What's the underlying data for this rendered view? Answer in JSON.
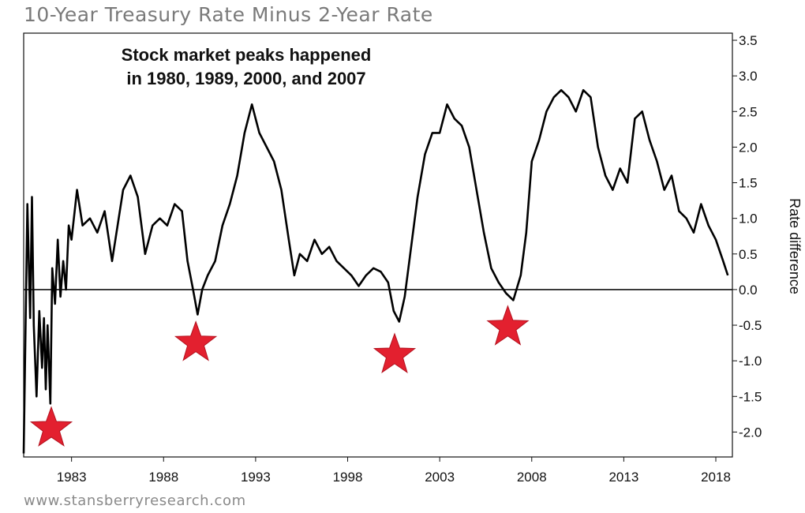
{
  "chart_data": {
    "type": "line",
    "title": "10-Year Treasury Rate Minus 2-Year Rate",
    "annotation": [
      "Stock market peaks happened",
      "in 1980, 1989, 2000, and 2007"
    ],
    "xlabel": "",
    "ylabel": "Rate difference",
    "xlim": [
      1980.4,
      2018.9
    ],
    "ylim": [
      -2.35,
      3.6
    ],
    "x_ticks": [
      "1983",
      "1988",
      "1993",
      "1998",
      "2003",
      "2008",
      "2013",
      "2018"
    ],
    "y_ticks": [
      "3.5",
      "3.0",
      "2.5",
      "2.0",
      "1.5",
      "1.0",
      "0.5",
      "0.0",
      "-0.5",
      "-1.0",
      "-1.5",
      "-2.0"
    ],
    "y_tick_values": [
      3.5,
      3.0,
      2.5,
      2.0,
      1.5,
      1.0,
      0.5,
      0.0,
      -0.5,
      -1.0,
      -1.5,
      -2.0
    ],
    "x_tick_values": [
      1983,
      1988,
      1993,
      1998,
      2003,
      2008,
      2013,
      2018
    ],
    "zero_line": 0,
    "grid": false,
    "series": [
      {
        "color": "#000000",
        "points": [
          [
            1980.4,
            -2.3
          ],
          [
            1980.6,
            1.2
          ],
          [
            1980.75,
            -0.4
          ],
          [
            1980.85,
            1.3
          ],
          [
            1980.95,
            -0.5
          ],
          [
            1981.1,
            -1.5
          ],
          [
            1981.25,
            -0.3
          ],
          [
            1981.4,
            -1.1
          ],
          [
            1981.5,
            -0.4
          ],
          [
            1981.6,
            -1.4
          ],
          [
            1981.7,
            -0.5
          ],
          [
            1981.85,
            -1.6
          ],
          [
            1981.95,
            0.3
          ],
          [
            1982.1,
            -0.2
          ],
          [
            1982.25,
            0.7
          ],
          [
            1982.4,
            -0.1
          ],
          [
            1982.55,
            0.4
          ],
          [
            1982.7,
            0.0
          ],
          [
            1982.85,
            0.9
          ],
          [
            1983.0,
            0.7
          ],
          [
            1983.3,
            1.4
          ],
          [
            1983.6,
            0.9
          ],
          [
            1984.0,
            1.0
          ],
          [
            1984.4,
            0.8
          ],
          [
            1984.8,
            1.1
          ],
          [
            1985.2,
            0.4
          ],
          [
            1985.5,
            0.9
          ],
          [
            1985.8,
            1.4
          ],
          [
            1986.2,
            1.6
          ],
          [
            1986.6,
            1.3
          ],
          [
            1987.0,
            0.5
          ],
          [
            1987.4,
            0.9
          ],
          [
            1987.8,
            1.0
          ],
          [
            1988.2,
            0.9
          ],
          [
            1988.6,
            1.2
          ],
          [
            1989.0,
            1.1
          ],
          [
            1989.3,
            0.4
          ],
          [
            1989.6,
            0.0
          ],
          [
            1989.85,
            -0.35
          ],
          [
            1990.1,
            0.0
          ],
          [
            1990.4,
            0.2
          ],
          [
            1990.8,
            0.4
          ],
          [
            1991.2,
            0.9
          ],
          [
            1991.6,
            1.2
          ],
          [
            1992.0,
            1.6
          ],
          [
            1992.4,
            2.2
          ],
          [
            1992.8,
            2.6
          ],
          [
            1993.2,
            2.2
          ],
          [
            1993.6,
            2.0
          ],
          [
            1994.0,
            1.8
          ],
          [
            1994.4,
            1.4
          ],
          [
            1994.8,
            0.7
          ],
          [
            1995.1,
            0.2
          ],
          [
            1995.4,
            0.5
          ],
          [
            1995.8,
            0.4
          ],
          [
            1996.2,
            0.7
          ],
          [
            1996.6,
            0.5
          ],
          [
            1997.0,
            0.6
          ],
          [
            1997.4,
            0.4
          ],
          [
            1997.8,
            0.3
          ],
          [
            1998.2,
            0.2
          ],
          [
            1998.6,
            0.05
          ],
          [
            1999.0,
            0.2
          ],
          [
            1999.4,
            0.3
          ],
          [
            1999.8,
            0.25
          ],
          [
            2000.2,
            0.1
          ],
          [
            2000.5,
            -0.3
          ],
          [
            2000.8,
            -0.45
          ],
          [
            2001.1,
            -0.1
          ],
          [
            2001.4,
            0.5
          ],
          [
            2001.8,
            1.3
          ],
          [
            2002.2,
            1.9
          ],
          [
            2002.6,
            2.2
          ],
          [
            2003.0,
            2.2
          ],
          [
            2003.4,
            2.6
          ],
          [
            2003.8,
            2.4
          ],
          [
            2004.2,
            2.3
          ],
          [
            2004.6,
            2.0
          ],
          [
            2005.0,
            1.4
          ],
          [
            2005.4,
            0.8
          ],
          [
            2005.8,
            0.3
          ],
          [
            2006.2,
            0.1
          ],
          [
            2006.6,
            -0.05
          ],
          [
            2007.0,
            -0.15
          ],
          [
            2007.4,
            0.2
          ],
          [
            2007.7,
            0.8
          ],
          [
            2008.0,
            1.8
          ],
          [
            2008.4,
            2.1
          ],
          [
            2008.8,
            2.5
          ],
          [
            2009.2,
            2.7
          ],
          [
            2009.6,
            2.8
          ],
          [
            2010.0,
            2.7
          ],
          [
            2010.4,
            2.5
          ],
          [
            2010.8,
            2.8
          ],
          [
            2011.2,
            2.7
          ],
          [
            2011.6,
            2.0
          ],
          [
            2012.0,
            1.6
          ],
          [
            2012.4,
            1.4
          ],
          [
            2012.8,
            1.7
          ],
          [
            2013.2,
            1.5
          ],
          [
            2013.6,
            2.4
          ],
          [
            2014.0,
            2.5
          ],
          [
            2014.4,
            2.1
          ],
          [
            2014.8,
            1.8
          ],
          [
            2015.2,
            1.4
          ],
          [
            2015.6,
            1.6
          ],
          [
            2016.0,
            1.1
          ],
          [
            2016.4,
            1.0
          ],
          [
            2016.8,
            0.8
          ],
          [
            2017.2,
            1.2
          ],
          [
            2017.6,
            0.9
          ],
          [
            2018.0,
            0.7
          ],
          [
            2018.4,
            0.4
          ],
          [
            2018.65,
            0.2
          ]
        ]
      }
    ],
    "markers": {
      "shape": "star",
      "color": "#e3202f",
      "points": [
        [
          1981.9,
          -1.95
        ],
        [
          1989.75,
          -0.75
        ],
        [
          2000.55,
          -0.92
        ],
        [
          2006.7,
          -0.53
        ]
      ]
    }
  },
  "footer": {
    "source": "www.stansberryresearch.com"
  }
}
